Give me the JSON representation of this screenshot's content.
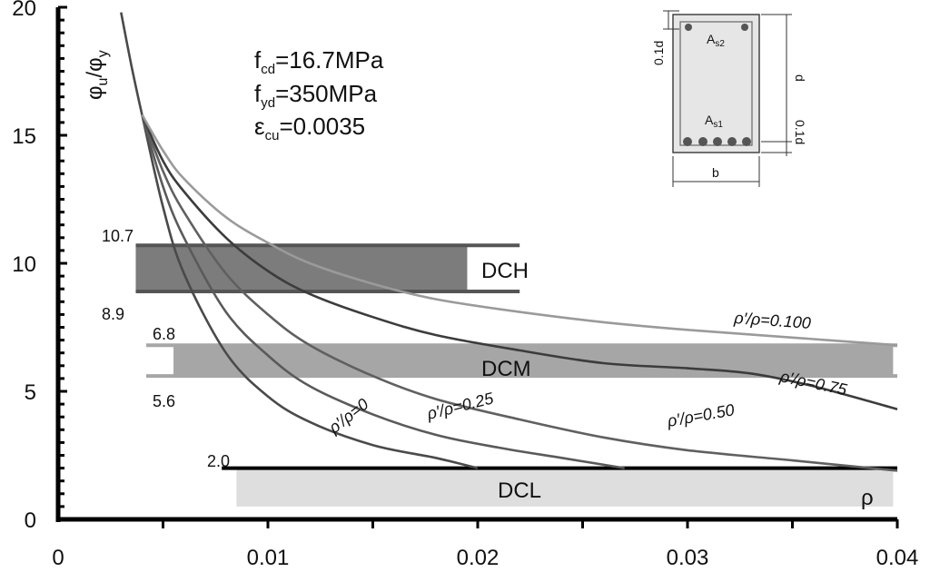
{
  "chart_data": {
    "type": "line",
    "ylabel": "φu/φy",
    "ylabel_main": "φ",
    "ylabel_sub_u": "u",
    "ylabel_slash": "/φ",
    "ylabel_sub_y": "y",
    "xlim": [
      0,
      0.04
    ],
    "ylim": [
      0,
      20
    ],
    "x_ticks": [
      0,
      0.01,
      0.02,
      0.03,
      0.04
    ],
    "x_tick_labels": [
      "0",
      "0.01",
      "0.02",
      "0.03",
      "0.04"
    ],
    "y_ticks": [
      0,
      5,
      10,
      15,
      20
    ],
    "y_tick_labels": [
      "0",
      "5",
      "10",
      "15",
      "20"
    ],
    "parameters": [
      {
        "symbol": "f",
        "sub": "cd",
        "value": "=16.7MPa"
      },
      {
        "symbol": "f",
        "sub": "yd",
        "value": "=350MPa"
      },
      {
        "symbol": "ε",
        "sub": "cu",
        "value": "=0.0035"
      }
    ],
    "series": [
      {
        "name": "ρ'/ρ=0",
        "label": "ρ′/ρ=0",
        "color": "#4a4a4a",
        "x": [
          0.003,
          0.0035,
          0.004,
          0.005,
          0.006,
          0.008,
          0.01,
          0.012,
          0.015,
          0.018,
          0.02
        ],
        "y": [
          19.8,
          17.7,
          15.8,
          12.2,
          9.6,
          6.5,
          4.8,
          3.8,
          2.9,
          2.4,
          2.0
        ]
      },
      {
        "name": "ρ'/ρ=0.25",
        "label": "ρ′/ρ=0.25",
        "color": "#5a5a5a",
        "x": [
          0.004,
          0.005,
          0.006,
          0.008,
          0.01,
          0.012,
          0.015,
          0.018,
          0.021,
          0.024,
          0.027
        ],
        "y": [
          15.8,
          13.0,
          11.0,
          8.1,
          6.4,
          5.2,
          4.1,
          3.3,
          2.8,
          2.4,
          2.0
        ]
      },
      {
        "name": "ρ'/ρ=0.50",
        "label": "ρ′/ρ=0.50",
        "color": "#606060",
        "x": [
          0.004,
          0.005,
          0.006,
          0.008,
          0.01,
          0.012,
          0.015,
          0.018,
          0.022,
          0.026,
          0.03,
          0.035,
          0.04
        ],
        "y": [
          15.8,
          13.6,
          12.0,
          9.6,
          8.0,
          6.8,
          5.6,
          4.7,
          3.9,
          3.2,
          2.7,
          2.3,
          1.9
        ]
      },
      {
        "name": "ρ'/ρ=0.75",
        "label": "ρ′/ρ=0.75",
        "color": "#3c3c3c",
        "x": [
          0.004,
          0.005,
          0.006,
          0.008,
          0.01,
          0.012,
          0.015,
          0.018,
          0.022,
          0.026,
          0.03,
          0.033,
          0.036,
          0.04
        ],
        "y": [
          15.8,
          14.0,
          12.8,
          11.0,
          9.7,
          8.8,
          7.9,
          7.2,
          6.6,
          6.1,
          5.9,
          5.7,
          5.2,
          4.3
        ]
      },
      {
        "name": "ρ'/ρ=0.100",
        "label": "ρ′/ρ=0.100",
        "color": "#9a9a9a",
        "x": [
          0.004,
          0.005,
          0.006,
          0.008,
          0.01,
          0.012,
          0.015,
          0.018,
          0.022,
          0.026,
          0.03,
          0.035,
          0.04
        ],
        "y": [
          15.8,
          14.4,
          13.3,
          11.8,
          10.8,
          10.0,
          9.2,
          8.6,
          8.1,
          7.7,
          7.4,
          7.1,
          6.8
        ]
      }
    ],
    "bands": [
      {
        "name": "DCH",
        "label": "DCH",
        "upper": 10.7,
        "lower": 8.9,
        "upper_label": "10.7",
        "lower_label": "8.9",
        "fill_x": [
          0.0037,
          0.0195
        ],
        "line_x": [
          0.0037,
          0.022
        ],
        "fill": "#7c7c7c",
        "line": "#555555"
      },
      {
        "name": "DCM",
        "label": "DCM",
        "upper": 6.8,
        "lower": 5.6,
        "upper_label": "6.8",
        "lower_label": "5.6",
        "fill_x": [
          0.0055,
          0.0398
        ],
        "line_x": [
          0.0042,
          0.04
        ],
        "fill": "#a6a6a6",
        "line": "#a6a6a6"
      },
      {
        "name": "DCL",
        "label": "DCL",
        "upper": 2.0,
        "lower": 0.5,
        "upper_label": "2.0",
        "fill_x": [
          0.0085,
          0.0398
        ],
        "line_x": [
          0.0078,
          0.04
        ],
        "fill": "#dedede",
        "line": "#000000"
      }
    ],
    "x_symbol": "ρ"
  },
  "inset": {
    "top_cover_label": "0.1d",
    "bottom_cover_label": "0.1d",
    "depth_label": "d",
    "width_label": "b",
    "top_steel_label": "A",
    "top_steel_sub": "s2",
    "bottom_steel_label": "A",
    "bottom_steel_sub": "s1"
  }
}
